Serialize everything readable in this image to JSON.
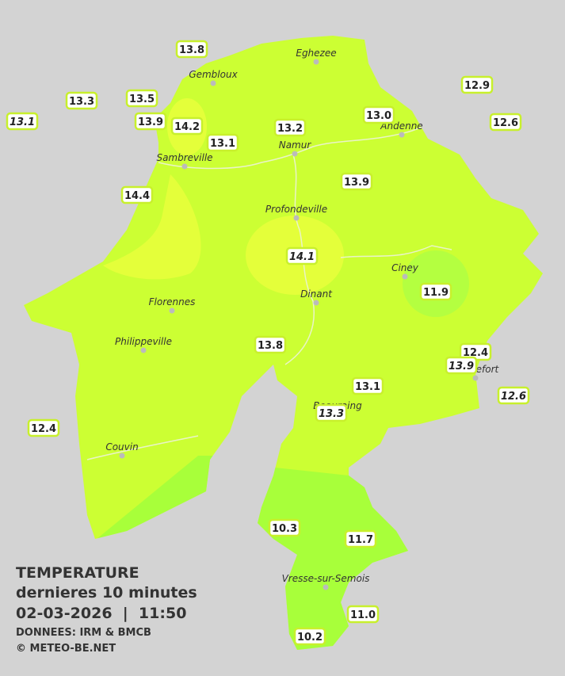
{
  "header": {
    "title": "TEMPERATURE",
    "subtitle": "dernieres 10 minutes",
    "datetime": "02-03-2026  |  11:50",
    "source": "DONNEES: IRM & BMCB",
    "copyright": "© METEO-BE.NET"
  },
  "cities": [
    "Eghezee",
    "Gembloux",
    "Andenne",
    "Namur",
    "Sambreville",
    "Profondeville",
    "Ciney",
    "Dinant",
    "Florennes",
    "Philippeville",
    "Rochefort",
    "Beauraing",
    "Couvin",
    "Vresse-sur-Semois"
  ],
  "stations": [
    "13.8",
    "13.3",
    "13.5",
    "13.1",
    "13.9",
    "14.2",
    "13.1",
    "13.2",
    "13.0",
    "12.9",
    "12.6",
    "13.9",
    "14.4",
    "14.1",
    "11.9",
    "13.8",
    "12.4",
    "13.9",
    "12.6",
    "13.1",
    "13.3",
    "12.4",
    "10.3",
    "11.7",
    "11.0",
    "10.2"
  ]
}
